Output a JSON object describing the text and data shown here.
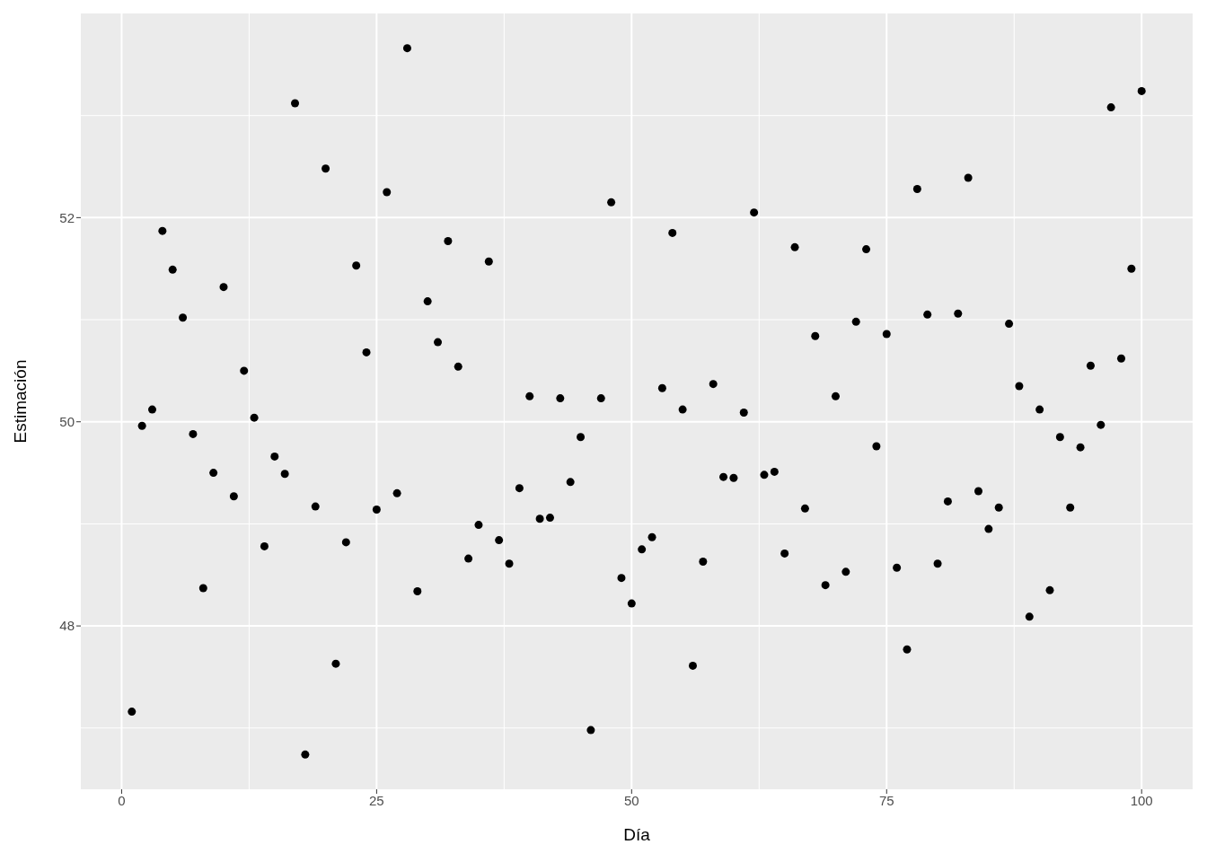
{
  "chart_data": {
    "type": "scatter",
    "xlabel": "Día",
    "ylabel": "Estimación",
    "x": [
      1,
      2,
      3,
      4,
      5,
      6,
      7,
      8,
      9,
      10,
      11,
      12,
      13,
      14,
      15,
      16,
      17,
      18,
      19,
      20,
      21,
      22,
      23,
      24,
      25,
      26,
      27,
      28,
      29,
      30,
      31,
      32,
      33,
      34,
      35,
      36,
      37,
      38,
      39,
      40,
      41,
      42,
      43,
      44,
      45,
      46,
      47,
      48,
      49,
      50,
      51,
      52,
      53,
      54,
      55,
      56,
      57,
      58,
      59,
      60,
      61,
      62,
      63,
      64,
      65,
      66,
      67,
      68,
      69,
      70,
      71,
      72,
      73,
      74,
      75,
      76,
      77,
      78,
      79,
      80,
      81,
      82,
      83,
      84,
      85,
      86,
      87,
      88,
      89,
      90,
      91,
      92,
      93,
      94,
      95,
      96,
      97,
      98,
      99,
      100
    ],
    "values": [
      47.16,
      49.96,
      50.12,
      51.87,
      51.49,
      51.02,
      49.88,
      48.37,
      49.5,
      51.32,
      49.27,
      50.5,
      50.04,
      48.78,
      49.66,
      49.49,
      53.12,
      46.74,
      49.17,
      52.48,
      47.63,
      48.82,
      51.53,
      50.68,
      49.14,
      52.25,
      49.3,
      53.66,
      48.34,
      51.18,
      50.78,
      51.77,
      50.54,
      48.66,
      48.99,
      51.57,
      48.84,
      48.61,
      49.35,
      50.25,
      49.05,
      49.06,
      50.23,
      49.41,
      49.85,
      46.98,
      50.23,
      52.15,
      48.47,
      48.22,
      48.75,
      48.87,
      50.33,
      51.85,
      50.12,
      47.61,
      48.63,
      50.37,
      49.46,
      49.45,
      50.09,
      52.05,
      49.48,
      49.51,
      48.71,
      51.71,
      49.15,
      50.84,
      48.4,
      50.25,
      48.53,
      50.98,
      51.69,
      49.76,
      50.86,
      48.57,
      47.77,
      52.28,
      51.05,
      48.61,
      49.22,
      51.06,
      52.39,
      49.32,
      48.95,
      49.16,
      50.96,
      50.35,
      48.09,
      50.12,
      48.35,
      49.85,
      49.16,
      49.75,
      50.55,
      49.97,
      53.08,
      50.62,
      51.5,
      53.24
    ],
    "color": "#000000",
    "marker": "circle",
    "xlim": [
      -4,
      105
    ],
    "xticks": [
      0,
      25,
      50,
      75,
      100
    ],
    "ylim": [
      46.4,
      54
    ],
    "yticks": [
      48,
      50,
      52
    ],
    "grid": true,
    "legend": false
  }
}
